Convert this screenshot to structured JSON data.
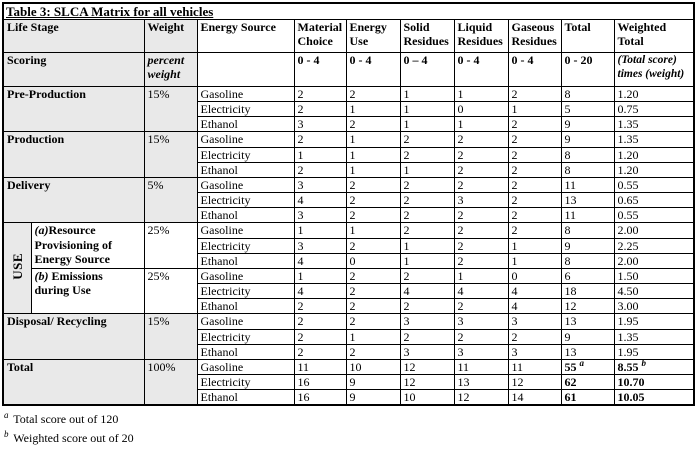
{
  "table": {
    "title": "Table 3: SLCA Matrix for all vehicles",
    "header": {
      "life_stage": "Life Stage",
      "weight": "Weight",
      "energy_source": "Energy Source",
      "material_choice": "Material Choice",
      "energy_use": "Energy Use",
      "solid_residues": "Solid Residues",
      "liquid_residues": "Liquid Residues",
      "gaseous_residues": "Gaseous Residues",
      "total": "Total",
      "weighted_total": "Weighted Total"
    },
    "scoring": {
      "label": "Scoring",
      "weight": "percent weight",
      "energy_source": "",
      "ranges": [
        "0 - 4",
        "0 - 4",
        "0 – 4",
        "0 - 4",
        "0 - 4"
      ],
      "total_range": "0 - 20",
      "weighted_formula": "(Total score) times (weight)"
    },
    "use_label": "USE",
    "groups": [
      {
        "stage": "Pre-Production",
        "weight": "15%",
        "use": false,
        "total_group": false,
        "rows": [
          {
            "source": "Gasoline",
            "scores": [
              2,
              2,
              1,
              1,
              2
            ],
            "total": 8,
            "weighted": "1.20"
          },
          {
            "source": "Electricity",
            "scores": [
              2,
              1,
              1,
              0,
              1
            ],
            "total": 5,
            "weighted": "0.75"
          },
          {
            "source": "Ethanol",
            "scores": [
              3,
              2,
              1,
              1,
              2
            ],
            "total": 9,
            "weighted": "1.35"
          }
        ]
      },
      {
        "stage": "Production",
        "weight": "15%",
        "use": false,
        "total_group": false,
        "rows": [
          {
            "source": "Gasoline",
            "scores": [
              2,
              1,
              2,
              2,
              2
            ],
            "total": 9,
            "weighted": "1.35"
          },
          {
            "source": "Electricity",
            "scores": [
              1,
              1,
              2,
              2,
              2
            ],
            "total": 8,
            "weighted": "1.20"
          },
          {
            "source": "Ethanol",
            "scores": [
              2,
              1,
              1,
              2,
              2
            ],
            "total": 8,
            "weighted": "1.20"
          }
        ]
      },
      {
        "stage": "Delivery",
        "weight": "5%",
        "use": false,
        "total_group": false,
        "rows": [
          {
            "source": "Gasoline",
            "scores": [
              3,
              2,
              2,
              2,
              2
            ],
            "total": 11,
            "weighted": "0.55"
          },
          {
            "source": "Electricity",
            "scores": [
              4,
              2,
              2,
              3,
              2
            ],
            "total": 13,
            "weighted": "0.65"
          },
          {
            "source": "Ethanol",
            "scores": [
              3,
              2,
              2,
              2,
              2
            ],
            "total": 11,
            "weighted": "0.55"
          }
        ]
      },
      {
        "stage_prefix": "(a)",
        "stage_name": "Resource Provisioning of Energy Source",
        "weight": "25%",
        "use": true,
        "total_group": false,
        "rows": [
          {
            "source": "Gasoline",
            "scores": [
              1,
              1,
              2,
              2,
              2
            ],
            "total": 8,
            "weighted": "2.00"
          },
          {
            "source": "Electricity",
            "scores": [
              3,
              2,
              1,
              2,
              1
            ],
            "total": 9,
            "weighted": "2.25"
          },
          {
            "source": "Ethanol",
            "scores": [
              4,
              0,
              1,
              2,
              1
            ],
            "total": 8,
            "weighted": "2.00"
          }
        ]
      },
      {
        "stage_prefix": "(b)",
        "stage_name": " Emissions during Use",
        "weight": "25%",
        "use": true,
        "total_group": false,
        "rows": [
          {
            "source": "Gasoline",
            "scores": [
              1,
              2,
              2,
              1,
              0
            ],
            "total": 6,
            "weighted": "1.50"
          },
          {
            "source": "Electricity",
            "scores": [
              4,
              2,
              4,
              4,
              4
            ],
            "total": 18,
            "weighted": "4.50"
          },
          {
            "source": "Ethanol",
            "scores": [
              2,
              2,
              2,
              2,
              4
            ],
            "total": 12,
            "weighted": "3.00"
          }
        ]
      },
      {
        "stage": "Disposal/ Recycling",
        "weight": "15%",
        "use": false,
        "total_group": false,
        "rows": [
          {
            "source": "Gasoline",
            "scores": [
              2,
              2,
              3,
              3,
              3
            ],
            "total": 13,
            "weighted": "1.95"
          },
          {
            "source": "Electricity",
            "scores": [
              2,
              1,
              2,
              2,
              2
            ],
            "total": 9,
            "weighted": "1.35"
          },
          {
            "source": "Ethanol",
            "scores": [
              2,
              2,
              3,
              3,
              3
            ],
            "total": 13,
            "weighted": "1.95"
          }
        ]
      },
      {
        "stage": "Total",
        "weight": "100%",
        "use": false,
        "total_group": true,
        "rows": [
          {
            "source": "Gasoline",
            "scores": [
              11,
              10,
              12,
              11,
              11
            ],
            "total": 55,
            "total_sup": "a",
            "weighted": "8.55",
            "weighted_sup": "b"
          },
          {
            "source": "Electricity",
            "scores": [
              16,
              9,
              12,
              13,
              12
            ],
            "total": 62,
            "weighted": "10.70"
          },
          {
            "source": "Ethanol",
            "scores": [
              16,
              9,
              10,
              12,
              14
            ],
            "total": 61,
            "weighted": "10.05"
          }
        ]
      }
    ],
    "footnotes": [
      {
        "marker": "a",
        "text": "Total score out of 120"
      },
      {
        "marker": "b",
        "text": "Weighted score out of 20"
      }
    ]
  },
  "colors": {
    "shaded_cell": "#e9e9e9",
    "border": "#000000",
    "background": "#ffffff"
  }
}
